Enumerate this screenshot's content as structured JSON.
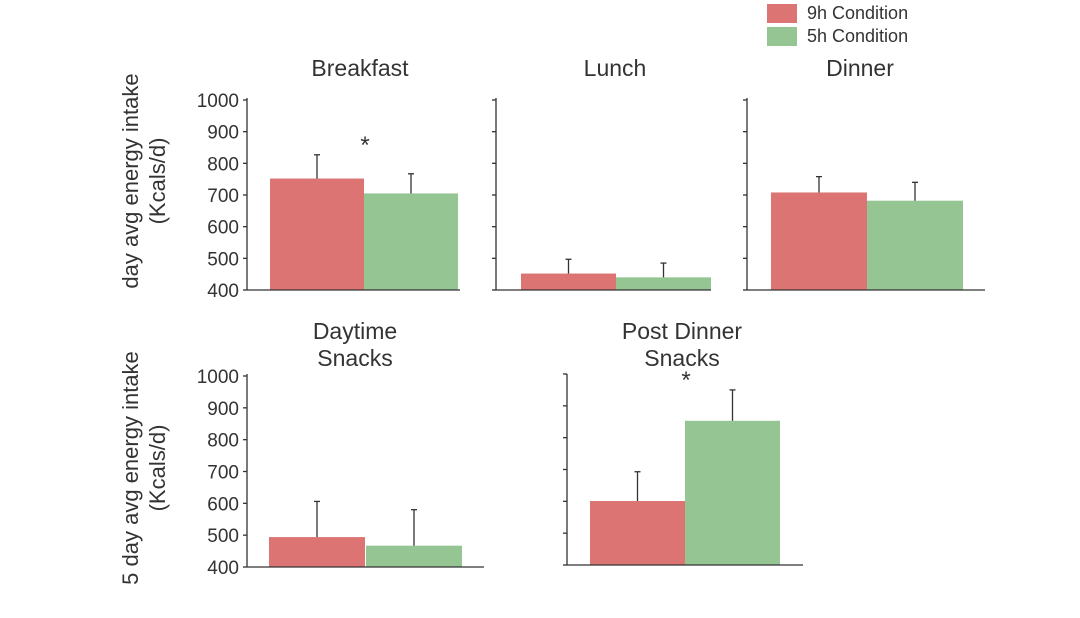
{
  "colors": {
    "nine_h": "#dc7474",
    "five_h": "#95c593",
    "axis": "#333333"
  },
  "legend": [
    {
      "label": "9h Condition",
      "color": "#dc7474"
    },
    {
      "label": "5h Condition",
      "color": "#95c593"
    }
  ],
  "ylabel_top": [
    "day avg energy intake",
    "(Kcals/d)"
  ],
  "ylabel_bottom": [
    "5 day avg energy intake",
    "(Kcals/d)"
  ],
  "chart_data": [
    {
      "type": "bar",
      "title": "Breakfast",
      "series": [
        {
          "name": "9h Condition",
          "values": [
            752
          ]
        },
        {
          "name": "5h Condition",
          "values": [
            705
          ]
        }
      ],
      "errors": [
        75,
        62
      ],
      "significance": "*",
      "ylim": [
        400,
        1000
      ],
      "yticks": [
        "400",
        "500",
        "600",
        "700",
        "800",
        "900",
        "1000"
      ]
    },
    {
      "type": "bar",
      "title": "Lunch",
      "series": [
        {
          "name": "9h Condition",
          "values": [
            452
          ]
        },
        {
          "name": "5h Condition",
          "values": [
            440
          ]
        }
      ],
      "errors": [
        45,
        45
      ],
      "ylim": [
        400,
        1000
      ]
    },
    {
      "type": "bar",
      "title": "Dinner",
      "series": [
        {
          "name": "9h Condition",
          "values": [
            708
          ]
        },
        {
          "name": "5h Condition",
          "values": [
            682
          ]
        }
      ],
      "errors": [
        50,
        58
      ],
      "ylim": [
        400,
        1000
      ]
    },
    {
      "type": "bar",
      "title": "Daytime Snacks",
      "series": [
        {
          "name": "9h Condition",
          "values": [
            494
          ]
        },
        {
          "name": "5h Condition",
          "values": [
            467
          ]
        }
      ],
      "errors": [
        112,
        113
      ],
      "ylim": [
        400,
        1000
      ],
      "yticks": [
        "400",
        "500",
        "600",
        "700",
        "800",
        "900",
        "1000"
      ]
    },
    {
      "type": "bar",
      "title": "Post Dinner Snacks",
      "series": [
        {
          "name": "9h Condition",
          "values": [
            601
          ]
        },
        {
          "name": "5h Condition",
          "values": [
            853
          ]
        }
      ],
      "errors": [
        92,
        97
      ],
      "significance": "*",
      "ylim": [
        400,
        1000
      ]
    }
  ]
}
